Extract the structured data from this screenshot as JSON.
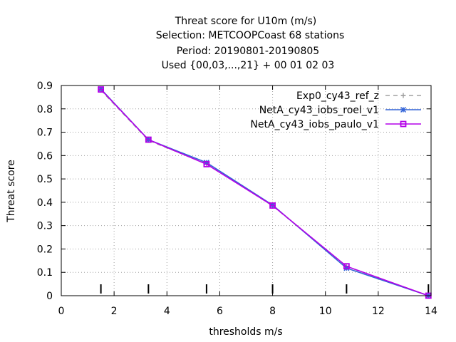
{
  "chart_data": {
    "type": "line",
    "title_lines": [
      "Threat score  for U10m (m/s)",
      "Selection: METCOOPCoast     68 stations",
      "Period: 20190801-20190805",
      "Used {00,03,...,21} + 00 01 02 03"
    ],
    "xlabel": "thresholds m/s",
    "ylabel": "Threat score",
    "xlim": [
      0,
      14
    ],
    "ylim": [
      0,
      0.9
    ],
    "x_ticks": [
      "0",
      "2",
      "4",
      "6",
      "8",
      "10",
      "12",
      "14"
    ],
    "y_ticks": [
      "0",
      "0.1",
      "0.2",
      "0.3",
      "0.4",
      "0.5",
      "0.6",
      "0.7",
      "0.8",
      "0.9"
    ],
    "grid": true,
    "grid_style": "dotted",
    "legend_position": "top-right",
    "threshold_marks": [
      1.5,
      3.3,
      5.5,
      8.0,
      10.8,
      13.9
    ],
    "x": [
      1.5,
      3.3,
      5.5,
      8.0,
      10.8,
      13.9
    ],
    "series": [
      {
        "name": "Exp0_cy43_ref_z",
        "color": "#a0a0a0",
        "dashed": true,
        "marker": "plus",
        "values": [
          0.88,
          0.665,
          0.565,
          0.385,
          0.125,
          0.0
        ]
      },
      {
        "name": "NetA_cy43_iobs_roel_v1",
        "color": "#3465d8",
        "dashed": false,
        "marker": "asterisk",
        "values": [
          0.885,
          0.668,
          0.57,
          0.388,
          0.118,
          0.0
        ]
      },
      {
        "name": "NetA_cy43_iobs_paulo_v1",
        "color": "#b400e8",
        "dashed": false,
        "marker": "box",
        "values": [
          0.883,
          0.668,
          0.563,
          0.386,
          0.126,
          0.0
        ]
      }
    ]
  }
}
